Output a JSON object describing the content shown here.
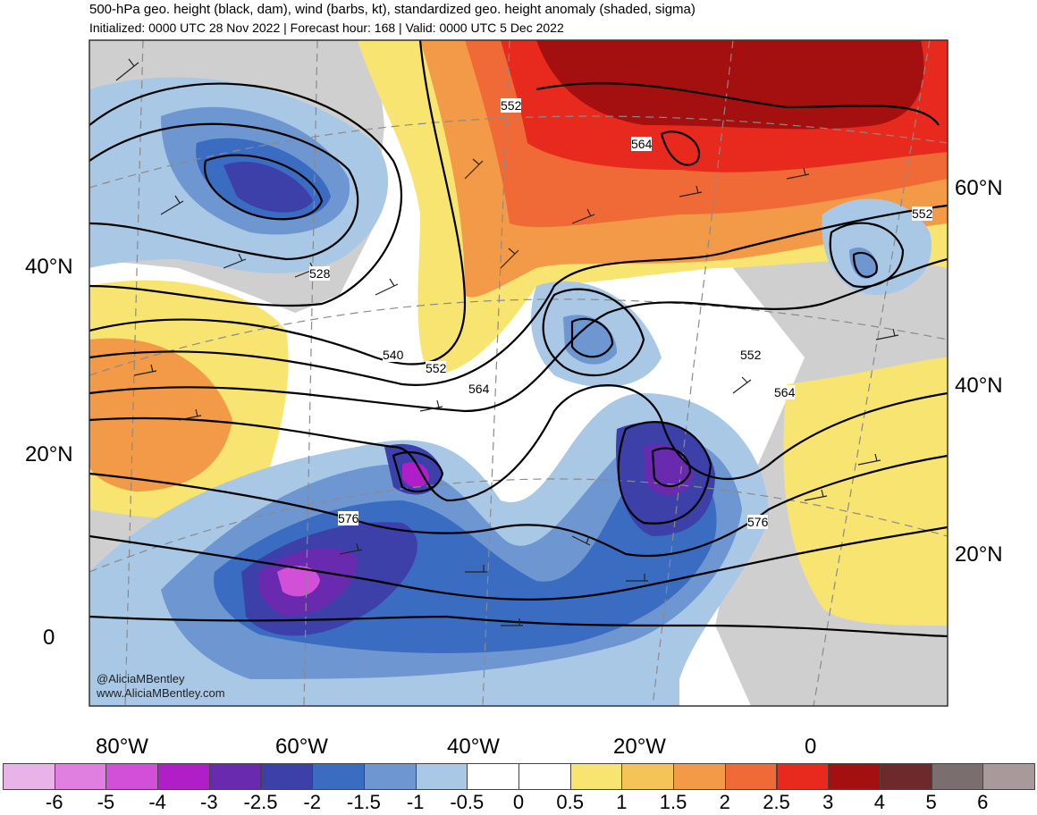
{
  "title": "500-hPa geo. height (black, dam), wind (barbs, kt), standardized geo. height anomaly (shaded, sigma)",
  "subtitle": "Initialized: 0000 UTC 28 Nov 2022 | Forecast hour: 168 | Valid: 0000 UTC 5 Dec 2022",
  "map": {
    "lat_labels_left": [
      "40°N",
      "20°N",
      "0"
    ],
    "lat_labels_right": [
      "60°N",
      "40°N",
      "20°N"
    ],
    "lon_labels": [
      "80°W",
      "60°W",
      "40°W",
      "20°W",
      "0"
    ],
    "contour_labels": [
      "528",
      "540",
      "552",
      "564",
      "576",
      "552",
      "564",
      "552",
      "564",
      "576",
      "552"
    ],
    "credit_handle": "@AliciaMBentley",
    "credit_site": "www.AliciaMBentley.com"
  },
  "colorbar": {
    "colors": [
      "#e8b4e8",
      "#e07fe0",
      "#d24fd8",
      "#b01ec8",
      "#6a2ab0",
      "#3c40a8",
      "#3a6cc2",
      "#6e96d0",
      "#a8c8e6",
      "#ffffff",
      "#ffffff",
      "#f8e470",
      "#f4c458",
      "#f39a48",
      "#f06a38",
      "#e82a1e",
      "#a41010",
      "#6e2a2a",
      "#7a6e6e",
      "#a89a9a"
    ],
    "labels": [
      "-6",
      "-5",
      "-4",
      "-3",
      "-2.5",
      "-2",
      "-1.5",
      "-1",
      "-0.5",
      "0",
      "0.5",
      "1",
      "1.5",
      "2",
      "2.5",
      "3",
      "4",
      "5",
      "6"
    ]
  }
}
